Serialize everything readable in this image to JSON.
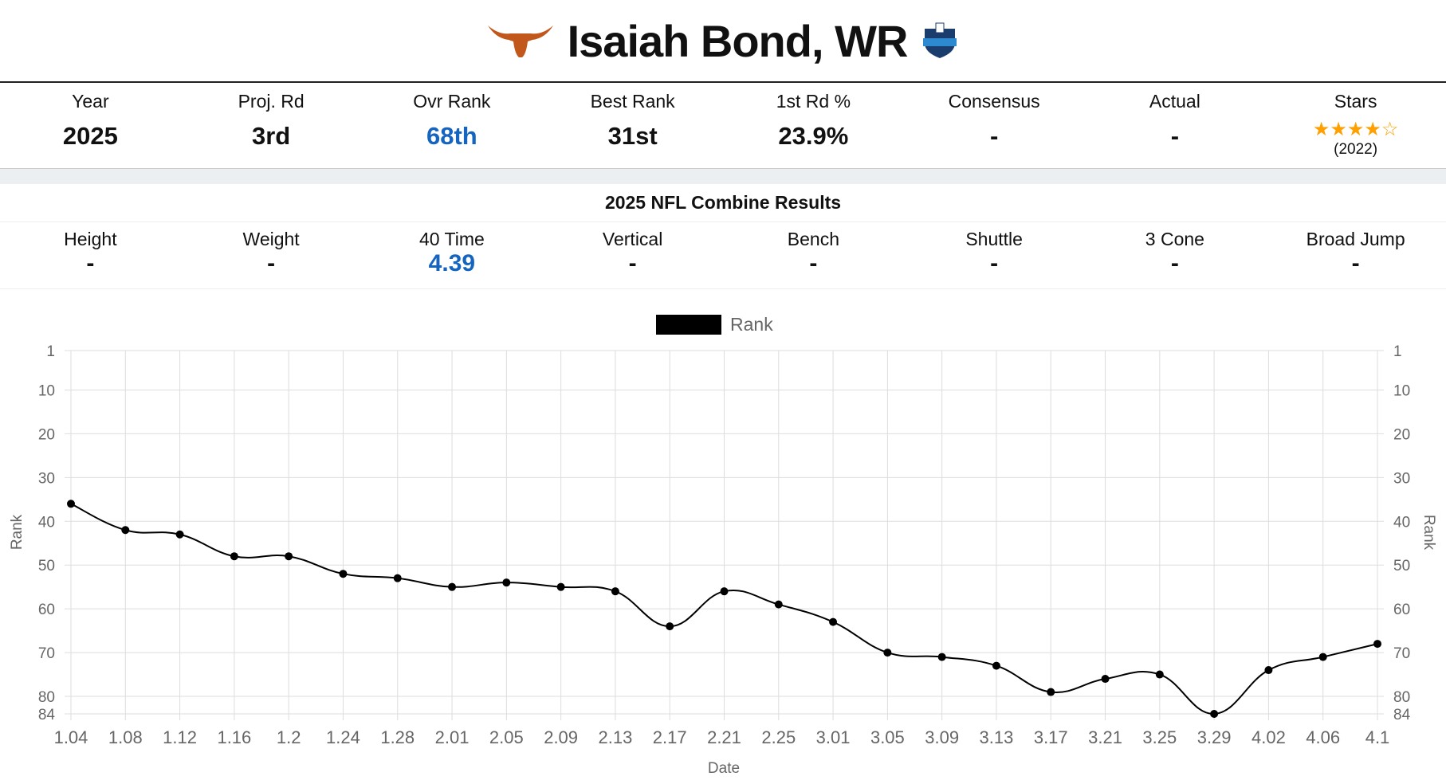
{
  "header": {
    "title": "Isaiah Bond, WR",
    "team_logo": "longhorn-icon",
    "badge": "nfl-combine-badge"
  },
  "stats": [
    {
      "label": "Year",
      "value": "2025"
    },
    {
      "label": "Proj. Rd",
      "value": "3rd"
    },
    {
      "label": "Ovr Rank",
      "value": "68th"
    },
    {
      "label": "Best Rank",
      "value": "31st"
    },
    {
      "label": "1st Rd %",
      "value": "23.9%"
    },
    {
      "label": "Consensus",
      "value": "-"
    },
    {
      "label": "Actual",
      "value": "-"
    },
    {
      "label": "Stars",
      "rating": 4,
      "max": 5,
      "year": "(2022)"
    }
  ],
  "combine": {
    "title": "2025 NFL Combine Results",
    "items": [
      {
        "label": "Height",
        "value": "-"
      },
      {
        "label": "Weight",
        "value": "-"
      },
      {
        "label": "40 Time",
        "value": "4.39"
      },
      {
        "label": "Vertical",
        "value": "-"
      },
      {
        "label": "Bench",
        "value": "-"
      },
      {
        "label": "Shuttle",
        "value": "-"
      },
      {
        "label": "3 Cone",
        "value": "-"
      },
      {
        "label": "Broad Jump",
        "value": "-"
      }
    ]
  },
  "colors": {
    "accent": "#1565c0",
    "star": "#ffa000",
    "longhorn": "#c1571a"
  },
  "chart_data": {
    "type": "line",
    "legend": "Rank",
    "legend_position": "top",
    "xlabel": "Date",
    "ylabel": "Rank",
    "y_reversed": true,
    "ylim": [
      1,
      84
    ],
    "yticks": [
      1,
      10,
      20,
      30,
      40,
      50,
      60,
      70,
      80,
      84
    ],
    "categories": [
      "1.04",
      "1.08",
      "1.12",
      "1.16",
      "1.2",
      "1.24",
      "1.28",
      "2.01",
      "2.05",
      "2.09",
      "2.13",
      "2.17",
      "2.21",
      "2.25",
      "3.01",
      "3.05",
      "3.09",
      "3.13",
      "3.17",
      "3.21",
      "3.25",
      "3.29",
      "4.02",
      "4.06",
      "4.1"
    ],
    "values": [
      36,
      42,
      43,
      48,
      48,
      52,
      53,
      55,
      54,
      55,
      56,
      64,
      56,
      59,
      63,
      70,
      71,
      73,
      79,
      76,
      75,
      84,
      74,
      71,
      68
    ]
  }
}
